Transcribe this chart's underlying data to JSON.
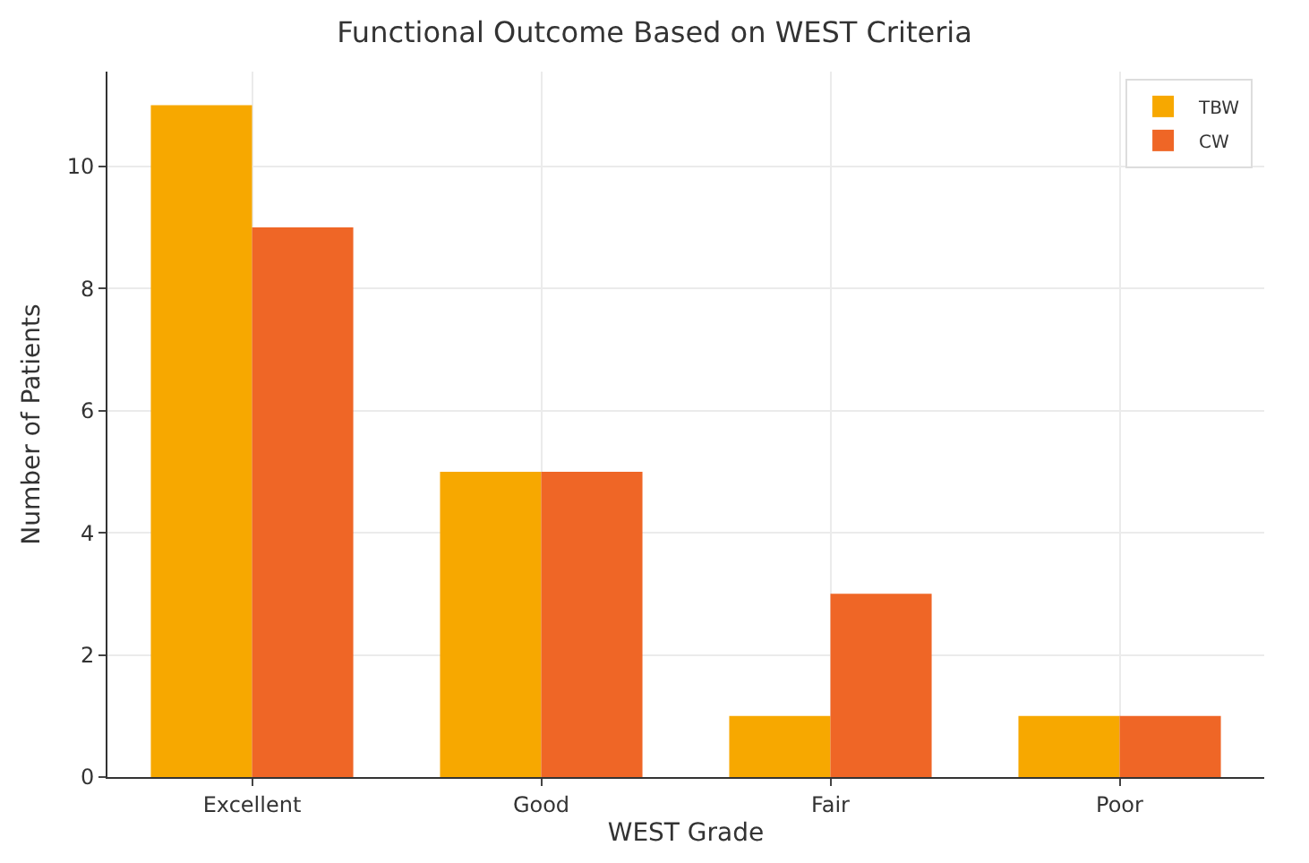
{
  "chart_data": {
    "type": "bar",
    "title": "Functional Outcome Based on WEST Criteria",
    "xlabel": "WEST Grade",
    "ylabel": "Number of Patients",
    "categories": [
      "Excellent",
      "Good",
      "Fair",
      "Poor"
    ],
    "series": [
      {
        "name": "TBW",
        "color": "#f7a800",
        "values": [
          11,
          5,
          1,
          1
        ]
      },
      {
        "name": "CW",
        "color": "#ef6626",
        "values": [
          9,
          5,
          3,
          1
        ]
      }
    ],
    "ylim": [
      0,
      11.55
    ],
    "yticks": [
      0,
      2,
      4,
      6,
      8,
      10
    ],
    "grid": true,
    "legend": "top right"
  }
}
